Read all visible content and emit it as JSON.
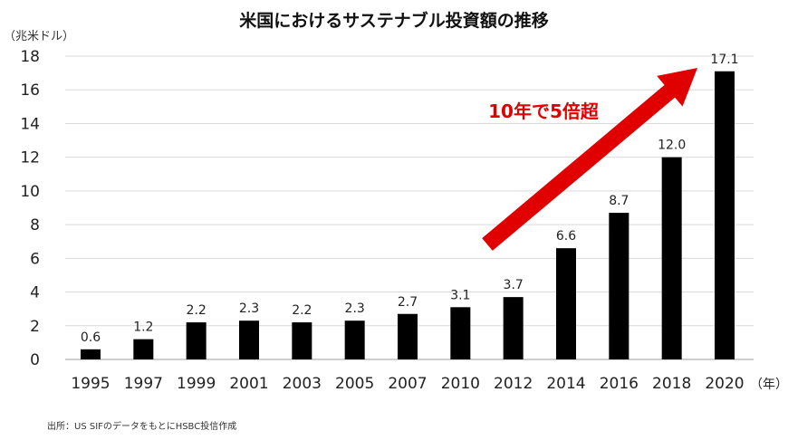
{
  "chart_data": {
    "type": "bar",
    "title": "米国におけるサステナブル投資額の推移",
    "ylabel": "（兆米ドル）",
    "xlabel": "（年）",
    "categories": [
      "1995",
      "1997",
      "1999",
      "2001",
      "2003",
      "2005",
      "2007",
      "2010",
      "2012",
      "2014",
      "2016",
      "2018",
      "2020"
    ],
    "values": [
      0.6,
      1.2,
      2.2,
      2.3,
      2.2,
      2.3,
      2.7,
      3.1,
      3.7,
      6.6,
      8.7,
      12.0,
      17.1
    ],
    "data_labels": [
      "0.6",
      "1.2",
      "2.2",
      "2.3",
      "2.2",
      "2.3",
      "2.7",
      "3.1",
      "3.7",
      "6.6",
      "8.7",
      "12.0",
      "17.1"
    ],
    "ylim": [
      0,
      18
    ],
    "yticks": [
      0,
      2,
      4,
      6,
      8,
      10,
      12,
      14,
      16,
      18
    ],
    "grid": true,
    "annotation": "10年で5倍超",
    "source": "出所：US SIFのデータをもとにHSBC投信作成",
    "colors": {
      "bar": "#000000",
      "arrow": "#e00000",
      "grid": "#d9d9d9"
    }
  }
}
